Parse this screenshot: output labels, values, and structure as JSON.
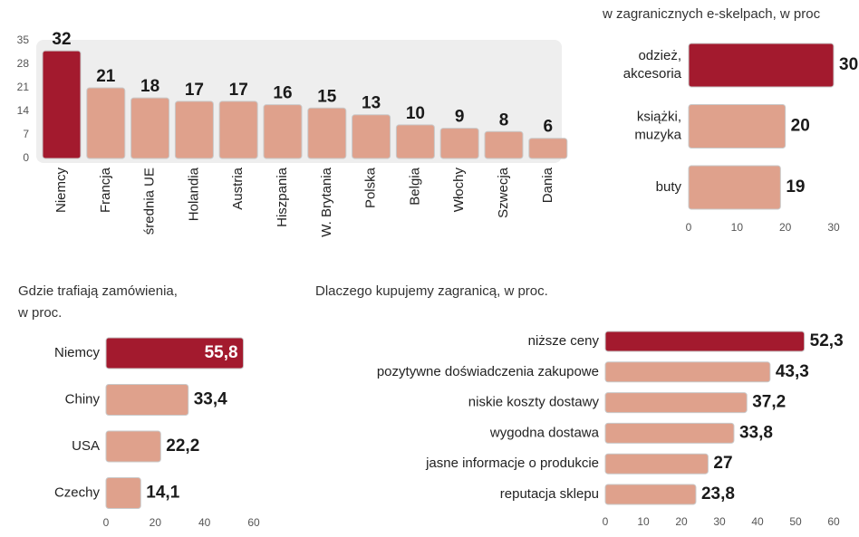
{
  "chart_data": [
    {
      "type": "bar",
      "categories": [
        "Niemcy",
        "Francja",
        "średnia UE",
        "Holandia",
        "Austria",
        "Hiszpania",
        "W. Brytania",
        "Polska",
        "Belgia",
        "Włochy",
        "Szwecja",
        "Dania"
      ],
      "values": [
        32,
        21,
        18,
        17,
        17,
        16,
        15,
        13,
        10,
        9,
        8,
        6
      ],
      "colors": [
        "#a31a2e",
        "#dfa18c",
        "#dfa18c",
        "#dfa18c",
        "#dfa18c",
        "#dfa18c",
        "#dfa18c",
        "#dfa18c",
        "#dfa18c",
        "#dfa18c",
        "#dfa18c",
        "#dfa18c"
      ],
      "ylim": [
        0,
        35
      ],
      "yticks": [
        0,
        7,
        14,
        21,
        28,
        35
      ]
    },
    {
      "type": "hbar",
      "title": "w zagranicznych e-skelpach, w proc",
      "categories": [
        "odzież, akcesoria",
        "książki, muzyka",
        "buty"
      ],
      "values": [
        30,
        20,
        19
      ],
      "colors": [
        "#a31a2e",
        "#dfa18c",
        "#dfa18c"
      ],
      "xlim": [
        0,
        30
      ],
      "xticks": [
        0,
        10,
        20,
        30
      ]
    },
    {
      "type": "hbar",
      "title": "Gdzie trafiają zamówienia, w proc.",
      "categories": [
        "Niemcy",
        "Chiny",
        "USA",
        "Czechy"
      ],
      "values": [
        55.8,
        33.4,
        22.2,
        14.1
      ],
      "value_labels": [
        "55,8",
        "33,4",
        "22,2",
        "14,1"
      ],
      "colors": [
        "#a31a2e",
        "#dfa18c",
        "#dfa18c",
        "#dfa18c"
      ],
      "xlim": [
        0,
        60
      ],
      "xticks": [
        0,
        20,
        40,
        60
      ]
    },
    {
      "type": "hbar",
      "title": "Dlaczego kupujemy zagranicą, w proc.",
      "categories": [
        "niższe ceny",
        "pozytywne doświadczenia zakupowe",
        "niskie koszty dostawy",
        "wygodna dostawa",
        "jasne informacje o produkcie",
        "reputacja sklepu"
      ],
      "values": [
        52.3,
        43.3,
        37.2,
        33.8,
        27,
        23.8
      ],
      "value_labels": [
        "52,3",
        "43,3",
        "37,2",
        "33,8",
        "27",
        "23,8"
      ],
      "colors": [
        "#a31a2e",
        "#dfa18c",
        "#dfa18c",
        "#dfa18c",
        "#dfa18c",
        "#dfa18c"
      ],
      "xlim": [
        0,
        60
      ],
      "xticks": [
        0,
        10,
        20,
        30,
        40,
        50,
        60
      ]
    }
  ]
}
